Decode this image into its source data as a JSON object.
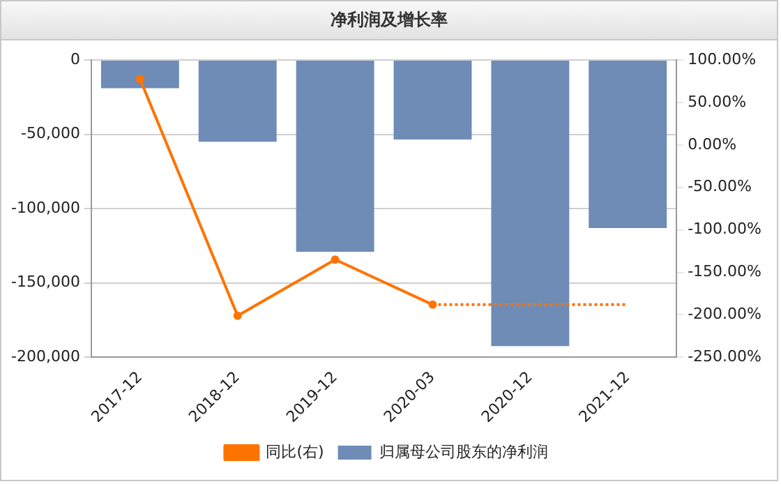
{
  "chart_data": {
    "type": "bar",
    "title": "净利润及增长率",
    "categories": [
      "2017-12",
      "2018-12",
      "2019-12",
      "2020-03",
      "2020-12",
      "2021-12"
    ],
    "series": [
      {
        "name": "归属母公司股东的净利润",
        "color": "#6f8cb6",
        "values": [
          -19000,
          -55000,
          -129000,
          -53500,
          -192500,
          -113000
        ]
      },
      {
        "name": "同比(右)",
        "type": "line",
        "axis": "y2",
        "color": "#ff7300",
        "marker": "circle",
        "values": [
          77.5,
          -201,
          -135,
          -188,
          null,
          null
        ]
      },
      {
        "type": "line",
        "axis": "y2",
        "color": "#ff7300",
        "marker": "none",
        "line_style": "dotted",
        "values": [
          null,
          null,
          null,
          -188,
          -188,
          -188
        ]
      }
    ],
    "ylim": [
      -200000,
      0
    ],
    "yticks": [
      {
        "value": 0,
        "label": "0"
      },
      {
        "value": -50000,
        "label": "-50,000"
      },
      {
        "value": -100000,
        "label": "-100,000"
      },
      {
        "value": -150000,
        "label": "-150,000"
      },
      {
        "value": -200000,
        "label": "-200,000"
      }
    ],
    "y2lim": [
      -250,
      100
    ],
    "y2ticks": [
      {
        "value": 100,
        "label": "100.00%"
      },
      {
        "value": 50,
        "label": "50.00%"
      },
      {
        "value": 0,
        "label": "0.00%"
      },
      {
        "value": -50,
        "label": "-50.00%"
      },
      {
        "value": -100,
        "label": "-100.00%"
      },
      {
        "value": -150,
        "label": "-150.00%"
      },
      {
        "value": -200,
        "label": "-200.00%"
      },
      {
        "value": -250,
        "label": "-250.00%"
      }
    ],
    "grid": "y",
    "legend": "bottom"
  }
}
